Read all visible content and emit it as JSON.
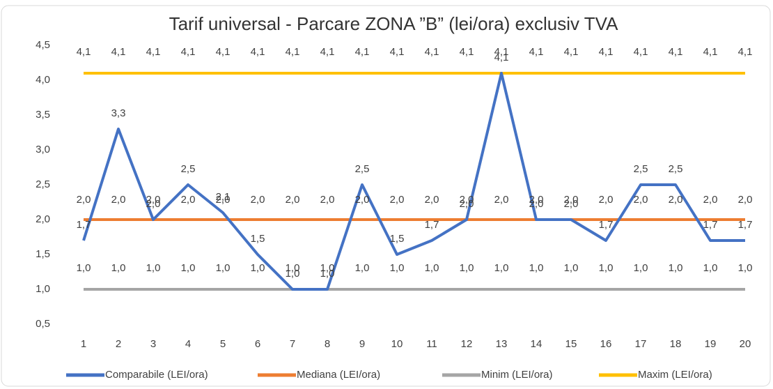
{
  "chart_data": {
    "type": "line",
    "title": "Tarif universal - Parcare ZONA ”B” (lei/ora) exclusiv TVA",
    "categories": [
      "1",
      "2",
      "3",
      "4",
      "5",
      "6",
      "7",
      "8",
      "9",
      "10",
      "11",
      "12",
      "13",
      "14",
      "15",
      "16",
      "17",
      "18",
      "19",
      "20"
    ],
    "ylim": [
      0.5,
      4.5
    ],
    "yticks": [
      {
        "value": 0.5,
        "label": "0,5"
      },
      {
        "value": 1.0,
        "label": "1,0"
      },
      {
        "value": 1.5,
        "label": "1,5"
      },
      {
        "value": 2.0,
        "label": "2,0"
      },
      {
        "value": 2.5,
        "label": "2,5"
      },
      {
        "value": 3.0,
        "label": "3,0"
      },
      {
        "value": 3.5,
        "label": "3,5"
      },
      {
        "value": 4.0,
        "label": "4,0"
      },
      {
        "value": 4.5,
        "label": "4,5"
      }
    ],
    "grid": false,
    "legend": "bottom",
    "series": [
      {
        "name": "Comparabile (LEI/ora)",
        "color": "#4472c4",
        "values": [
          1.7,
          3.3,
          2.0,
          2.5,
          2.1,
          1.5,
          1.0,
          1.0,
          2.5,
          1.5,
          1.7,
          2.0,
          4.1,
          2.0,
          2.0,
          1.7,
          2.5,
          2.5,
          1.7,
          1.7
        ],
        "value_labels": [
          "1,7",
          "3,3",
          "2,0",
          "2,5",
          "2,1",
          "1,5",
          "1,0",
          "1,0",
          "2,5",
          "1,5",
          "1,7",
          "2,0",
          "4,1",
          "2,0",
          "2,0",
          "1,7",
          "2,5",
          "2,5",
          "1,7",
          "1,7"
        ]
      },
      {
        "name": "Mediana (LEI/ora)",
        "color": "#ed7d31",
        "values": [
          2.0,
          2.0,
          2.0,
          2.0,
          2.0,
          2.0,
          2.0,
          2.0,
          2.0,
          2.0,
          2.0,
          2.0,
          2.0,
          2.0,
          2.0,
          2.0,
          2.0,
          2.0,
          2.0,
          2.0
        ],
        "value_labels": [
          "2,0",
          "2,0",
          "2,0",
          "2,0",
          "2,0",
          "2,0",
          "2,0",
          "2,0",
          "2,0",
          "2,0",
          "2,0",
          "2,0",
          "2,0",
          "2,0",
          "2,0",
          "2,0",
          "2,0",
          "2,0",
          "2,0",
          "2,0"
        ]
      },
      {
        "name": "Minim (LEI/ora)",
        "color": "#a5a5a5",
        "values": [
          1.0,
          1.0,
          1.0,
          1.0,
          1.0,
          1.0,
          1.0,
          1.0,
          1.0,
          1.0,
          1.0,
          1.0,
          1.0,
          1.0,
          1.0,
          1.0,
          1.0,
          1.0,
          1.0,
          1.0
        ],
        "value_labels": [
          "1,0",
          "1,0",
          "1,0",
          "1,0",
          "1,0",
          "1,0",
          "1,0",
          "1,0",
          "1,0",
          "1,0",
          "1,0",
          "1,0",
          "1,0",
          "1,0",
          "1,0",
          "1,0",
          "1,0",
          "1,0",
          "1,0",
          "1,0"
        ]
      },
      {
        "name": "Maxim (LEI/ora)",
        "color": "#ffc000",
        "values": [
          4.1,
          4.1,
          4.1,
          4.1,
          4.1,
          4.1,
          4.1,
          4.1,
          4.1,
          4.1,
          4.1,
          4.1,
          4.1,
          4.1,
          4.1,
          4.1,
          4.1,
          4.1,
          4.1,
          4.1
        ],
        "value_labels": [
          "4,1",
          "4,1",
          "4,1",
          "4,1",
          "4,1",
          "4,1",
          "4,1",
          "4,1",
          "4,1",
          "4,1",
          "4,1",
          "4,1",
          "4,1",
          "4,1",
          "4,1",
          "4,1",
          "4,1",
          "4,1",
          "4,1",
          "4,1"
        ]
      }
    ]
  }
}
